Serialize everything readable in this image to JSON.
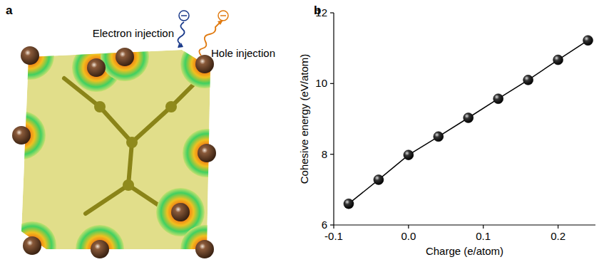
{
  "figure": {
    "panel_a": {
      "letter": "a",
      "electron_label": "Electron injection",
      "hole_label": "Hole injection"
    },
    "panel_b_letter": "b"
  },
  "chart_data": {
    "type": "line",
    "x_label": "Charge (e/atom)",
    "y_label": "Cohesive energy (eV/atom)",
    "x": [
      -0.08,
      -0.04,
      0.0,
      0.04,
      0.08,
      0.12,
      0.16,
      0.2,
      0.24
    ],
    "values": [
      6.6,
      7.28,
      7.98,
      8.5,
      9.03,
      9.57,
      10.1,
      10.67,
      11.22
    ],
    "color": "#000000",
    "marker": "circle",
    "line_style": "solid",
    "xlim": [
      -0.1,
      0.25
    ],
    "xticks": [
      -0.1,
      {
        "value": 0,
        "label": "0.0"
      },
      0.1,
      0.2
    ],
    "ylim": [
      6,
      12
    ],
    "yticks": [
      6,
      8,
      10,
      12
    ],
    "grid": false
  }
}
